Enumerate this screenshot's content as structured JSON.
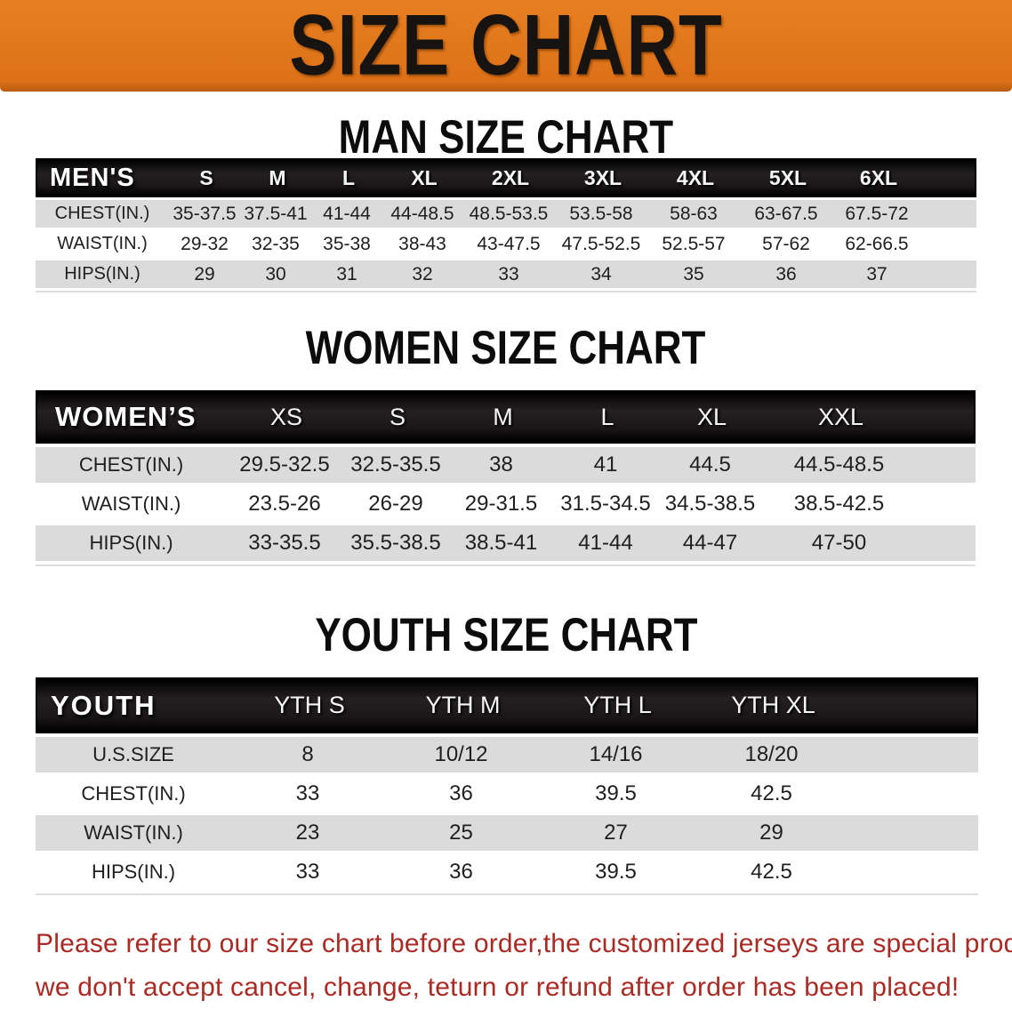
{
  "banner": {
    "title": "SIZE CHART"
  },
  "men": {
    "heading": "MAN SIZE CHART",
    "header_label": "MEN'S",
    "sizes": [
      "S",
      "M",
      "L",
      "XL",
      "2XL",
      "3XL",
      "4XL",
      "5XL",
      "6XL"
    ],
    "rows": [
      {
        "label": "CHEST(IN.)",
        "values": [
          "35-37.5",
          "37.5-41",
          "41-44",
          "44-48.5",
          "48.5-53.5",
          "53.5-58",
          "58-63",
          "63-67.5",
          "67.5-72"
        ]
      },
      {
        "label": "WAIST(IN.)",
        "values": [
          "29-32",
          "32-35",
          "35-38",
          "38-43",
          "43-47.5",
          "47.5-52.5",
          "52.5-57",
          "57-62",
          "62-66.5"
        ]
      },
      {
        "label": "HIPS(IN.)",
        "values": [
          "29",
          "30",
          "31",
          "32",
          "33",
          "34",
          "35",
          "36",
          "37"
        ]
      }
    ]
  },
  "women": {
    "heading": "WOMEN SIZE CHART",
    "header_label": "WOMEN’S",
    "sizes": [
      "XS",
      "S",
      "M",
      "L",
      "XL",
      "XXL"
    ],
    "rows": [
      {
        "label": "CHEST(IN.)",
        "values": [
          "29.5-32.5",
          "32.5-35.5",
          "38",
          "41",
          "44.5",
          "44.5-48.5"
        ]
      },
      {
        "label": "WAIST(IN.)",
        "values": [
          "23.5-26",
          "26-29",
          "29-31.5",
          "31.5-34.5",
          "34.5-38.5",
          "38.5-42.5"
        ]
      },
      {
        "label": "HIPS(IN.)",
        "values": [
          "33-35.5",
          "35.5-38.5",
          "38.5-41",
          "41-44",
          "44-47",
          "47-50"
        ]
      }
    ]
  },
  "youth": {
    "heading": "YOUTH SIZE CHART",
    "header_label": "YOUTH",
    "sizes": [
      "YTH S",
      "YTH M",
      "YTH L",
      "YTH XL"
    ],
    "rows": [
      {
        "label": "U.S.SIZE",
        "values": [
          "8",
          "10/12",
          "14/16",
          "18/20"
        ]
      },
      {
        "label": "CHEST(IN.)",
        "values": [
          "33",
          "36",
          "39.5",
          "42.5"
        ]
      },
      {
        "label": "WAIST(IN.)",
        "values": [
          "23",
          "25",
          "27",
          "29"
        ]
      },
      {
        "label": "HIPS(IN.)",
        "values": [
          "33",
          "36",
          "39.5",
          "42.5"
        ]
      }
    ]
  },
  "footer": {
    "line1": "Please refer to our size chart before order,the customized jerseys are special products,",
    "line2": "we don't accept cancel, change, teturn or refund after order has been placed!"
  },
  "colors": {
    "banner_orange": "#e1771b",
    "header_bar_black": "#1a1718",
    "stripe_gray": "#dbdbdb",
    "footer_red": "#ab2a24",
    "heading_black": "#0c0c0c"
  }
}
